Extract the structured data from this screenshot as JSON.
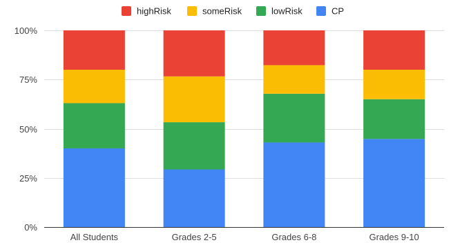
{
  "chart_data": {
    "type": "bar",
    "stacked": "percent",
    "categories": [
      "All Students",
      "Grades 2-5",
      "Grades 6-8",
      "Grades 9-10"
    ],
    "series": [
      {
        "name": "CP",
        "color": "#4285F4",
        "values": [
          40.0,
          29.3,
          43.0,
          44.8
        ]
      },
      {
        "name": "lowRisk",
        "color": "#34A853",
        "values": [
          23.0,
          24.0,
          24.8,
          20.2
        ]
      },
      {
        "name": "someRisk",
        "color": "#FBBC04",
        "values": [
          17.0,
          23.3,
          14.5,
          15.0
        ]
      },
      {
        "name": "highRisk",
        "color": "#EA4335",
        "values": [
          20.0,
          23.4,
          17.7,
          20.0
        ]
      }
    ],
    "legend_order": [
      "highRisk",
      "someRisk",
      "lowRisk",
      "CP"
    ],
    "legend_position": "top",
    "y_ticks": [
      "0%",
      "25%",
      "50%",
      "75%",
      "100%"
    ],
    "ylim": [
      0,
      100
    ],
    "grid": true
  }
}
